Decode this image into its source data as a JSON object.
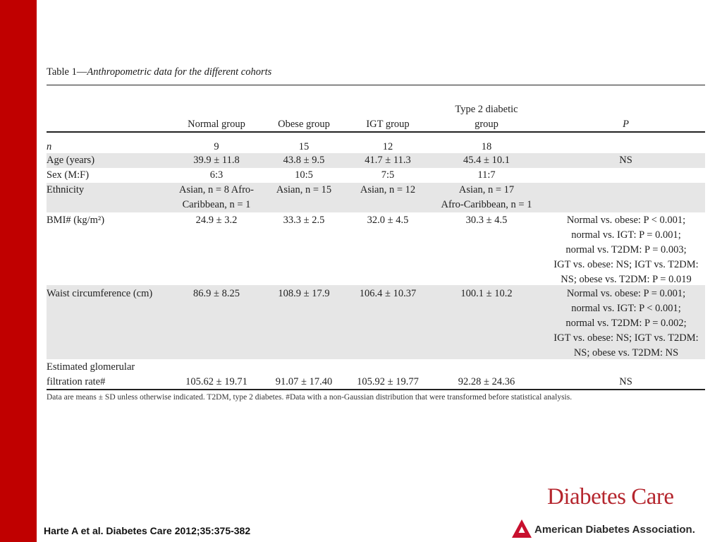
{
  "title": {
    "label": "Table 1",
    "dash": "—",
    "caption": "Anthropometric data for the different cohorts"
  },
  "headers": {
    "variable": "",
    "normal": "Normal group",
    "obese": "Obese group",
    "igt": "IGT group",
    "t2dm": "Type 2 diabetic\ngroup",
    "p": "P"
  },
  "rows": {
    "n": {
      "label": "n",
      "normal": "9",
      "obese": "15",
      "igt": "12",
      "t2dm": "18",
      "p": ""
    },
    "age": {
      "label": "Age (years)",
      "normal": "39.9 ± 11.8",
      "obese": "43.8 ± 9.5",
      "igt": "41.7 ± 11.3",
      "t2dm": "45.4 ± 10.1",
      "p": "NS"
    },
    "sex": {
      "label": "Sex (M:F)",
      "normal": "6:3",
      "obese": "10:5",
      "igt": "7:5",
      "t2dm": "11:7",
      "p": ""
    },
    "ethnicity": {
      "label": "Ethnicity",
      "normal": "Asian, n = 8 Afro-\nCaribbean, n = 1",
      "obese": "Asian, n = 15",
      "igt": "Asian, n = 12",
      "t2dm": "Asian, n = 17\nAfro-Caribbean, n = 1",
      "p": ""
    },
    "bmi": {
      "label": "BMI# (kg/m²)",
      "normal": "24.9 ± 3.2",
      "obese": "33.3 ± 2.5",
      "igt": "32.0 ± 4.5",
      "t2dm": "30.3 ± 4.5",
      "p": "Normal vs. obese: P < 0.001;\nnormal vs. IGT: P = 0.001;\nnormal vs. T2DM: P = 0.003;\nIGT vs. obese: NS; IGT vs. T2DM:\nNS; obese vs. T2DM: P = 0.019"
    },
    "waist": {
      "label": "Waist circumference (cm)",
      "normal": "86.9 ± 8.25",
      "obese": "108.9 ± 17.9",
      "igt": "106.4 ± 10.37",
      "t2dm": "100.1 ± 10.2",
      "p": "Normal vs. obese: P = 0.001;\nnormal vs. IGT: P < 0.001;\nnormal vs. T2DM: P = 0.002;\nIGT vs. obese: NS; IGT vs. T2DM:\nNS; obese vs. T2DM: NS"
    },
    "egfr": {
      "label": "Estimated glomerular\n   filtration rate#",
      "normal": "105.62 ± 19.71",
      "obese": "91.07 ± 17.40",
      "igt": "105.92 ± 19.77",
      "t2dm": "92.28 ± 24.36",
      "p": "NS"
    }
  },
  "footnote": "Data are means ± SD unless otherwise indicated. T2DM, type 2 diabetes. #Data with a non-Gaussian distribution that were transformed before statistical analysis.",
  "citation": "Harte A et al. Diabetes Care 2012;35:375-382",
  "branding": {
    "journal": "Diabetes Care",
    "association": "American Diabetes Association."
  },
  "colors": {
    "sidebar": "#c00000",
    "row_shade": "#e6e6e6",
    "journal_brand": "#b5262e",
    "ada_red": "#c8102e"
  }
}
